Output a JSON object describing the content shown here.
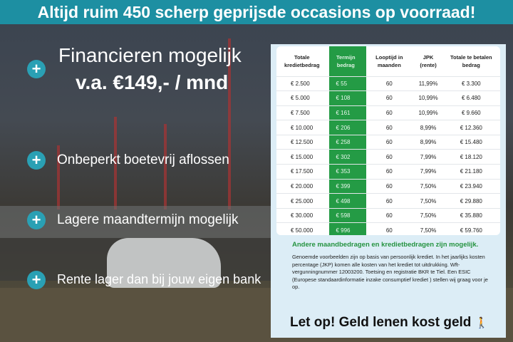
{
  "banner": "Altijd ruim 450 scherp geprijsde occasions op voorraad!",
  "headline": {
    "line1": "Financieren mogelijk",
    "line2": "v.a. €149,- / mnd"
  },
  "features": [
    "Onbeperkt boetevrij aflossen",
    "Lagere maandtermijn mogelijk",
    "Rente lager dan bij jouw eigen bank"
  ],
  "plus_icon": "+",
  "colors": {
    "banner": "#1d8fa2",
    "accent_green": "#249b45",
    "plus": "#2aa0b4"
  },
  "table": {
    "headers": [
      "Totale kredietbedrag",
      "Termijn bedrag",
      "Looptijd in maanden",
      "JPK (rente)",
      "Totale te betalen bedrag"
    ],
    "rows": [
      [
        "€ 2.500",
        "€ 55",
        "60",
        "11,99%",
        "€ 3.300"
      ],
      [
        "€ 5.000",
        "€ 108",
        "60",
        "10,99%",
        "€ 6.480"
      ],
      [
        "€ 7.500",
        "€ 161",
        "60",
        "10,99%",
        "€ 9.660"
      ],
      [
        "€ 10.000",
        "€ 206",
        "60",
        "8,99%",
        "€ 12.360"
      ],
      [
        "€ 12.500",
        "€ 258",
        "60",
        "8,99%",
        "€ 15.480"
      ],
      [
        "€ 15.000",
        "€ 302",
        "60",
        "7,99%",
        "€ 18.120"
      ],
      [
        "€ 17.500",
        "€ 353",
        "60",
        "7,99%",
        "€ 21.180"
      ],
      [
        "€ 20.000",
        "€ 399",
        "60",
        "7,50%",
        "€ 23.940"
      ],
      [
        "€ 25.000",
        "€ 498",
        "60",
        "7,50%",
        "€ 29.880"
      ],
      [
        "€ 30.000",
        "€ 598",
        "60",
        "7,50%",
        "€ 35.880"
      ],
      [
        "€ 50.000",
        "€ 996",
        "60",
        "7,50%",
        "€ 59.760"
      ]
    ]
  },
  "note_heading": "Andere maandbedragen en kredietbedragen zijn mogelijk.",
  "note_text": "Genoemde voorbeelden zijn op basis van persoonlijk krediet. In het jaarlijks kosten percentage (JKP) komen alle kosten van het krediet tot uitdrukking. Wft-vergunningnummer 12003200. Toetsing en registratie BKR te Tiel. Een ESIC (Europese standaardinformatie inzake consumptief krediet ) stellen wij graag voor je op.",
  "warning": "Let op! Geld lenen kost geld"
}
